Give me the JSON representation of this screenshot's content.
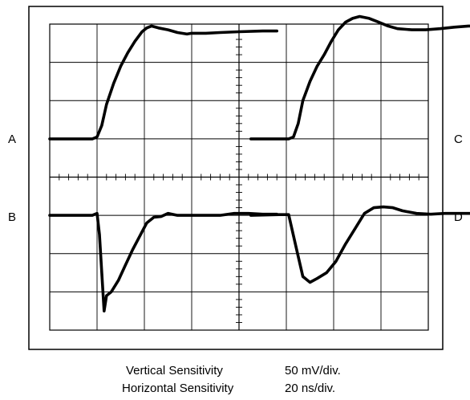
{
  "chart_data": {
    "type": "line",
    "grid": true,
    "grid_divisions": {
      "horizontal": 8,
      "vertical": 8
    },
    "trace_labels": {
      "A": "A",
      "B": "B",
      "C": "C",
      "D": "D"
    },
    "vertical_sensitivity": {
      "label": "Vertical Sensitivity",
      "value": "50 mV/div."
    },
    "horizontal_sensitivity": {
      "label": "Horizontal Sensitivity",
      "value": "20 ns/div."
    },
    "traces": [
      {
        "label": "A",
        "x": [
          0.0,
          0.9,
          1.0,
          1.1,
          1.2,
          1.35,
          1.5,
          1.65,
          1.8,
          1.95,
          2.05,
          2.15,
          2.3,
          2.5,
          2.7,
          2.9,
          3.0,
          3.3,
          3.6,
          4.0,
          4.5,
          4.8
        ],
        "y": [
          0.0,
          0.0,
          0.05,
          0.35,
          0.9,
          1.45,
          1.9,
          2.25,
          2.55,
          2.8,
          2.9,
          2.95,
          2.9,
          2.85,
          2.78,
          2.74,
          2.76,
          2.76,
          2.78,
          2.8,
          2.82,
          2.82
        ]
      },
      {
        "label": "C",
        "x": [
          0.0,
          0.8,
          0.9,
          1.0,
          1.1,
          1.25,
          1.4,
          1.55,
          1.7,
          1.85,
          2.0,
          2.15,
          2.3,
          2.5,
          2.7,
          2.9,
          3.1,
          3.4,
          3.7,
          4.0,
          4.3,
          4.6,
          4.8
        ],
        "y": [
          0.0,
          0.0,
          0.05,
          0.4,
          1.0,
          1.5,
          1.9,
          2.2,
          2.55,
          2.85,
          3.05,
          3.15,
          3.2,
          3.15,
          3.05,
          2.95,
          2.88,
          2.85,
          2.85,
          2.88,
          2.92,
          2.95,
          2.95
        ]
      },
      {
        "label": "B",
        "x": [
          0.0,
          0.9,
          1.0,
          1.05,
          1.1,
          1.15,
          1.2,
          1.3,
          1.45,
          1.6,
          1.75,
          1.9,
          2.05,
          2.2,
          2.35,
          2.5,
          2.7,
          2.9,
          3.1,
          3.3,
          3.6,
          3.9,
          4.2,
          4.5,
          4.8
        ],
        "y": [
          0.0,
          0.0,
          0.05,
          -0.5,
          -1.5,
          -2.5,
          -2.1,
          -2.0,
          -1.7,
          -1.3,
          -0.9,
          -0.55,
          -0.2,
          -0.05,
          -0.03,
          0.05,
          0.0,
          0.0,
          0.0,
          0.0,
          0.0,
          0.05,
          0.05,
          0.03,
          0.03
        ]
      },
      {
        "label": "D",
        "x": [
          0.0,
          0.6,
          0.8,
          0.95,
          1.1,
          1.25,
          1.4,
          1.6,
          1.8,
          2.0,
          2.2,
          2.4,
          2.6,
          2.8,
          3.0,
          3.2,
          3.5,
          3.8,
          4.1,
          4.4,
          4.8
        ],
        "y": [
          0.0,
          0.02,
          0.02,
          -0.8,
          -1.6,
          -1.75,
          -1.65,
          -1.5,
          -1.2,
          -0.75,
          -0.35,
          0.05,
          0.2,
          0.22,
          0.2,
          0.12,
          0.05,
          0.03,
          0.05,
          0.05,
          0.05
        ]
      }
    ]
  }
}
